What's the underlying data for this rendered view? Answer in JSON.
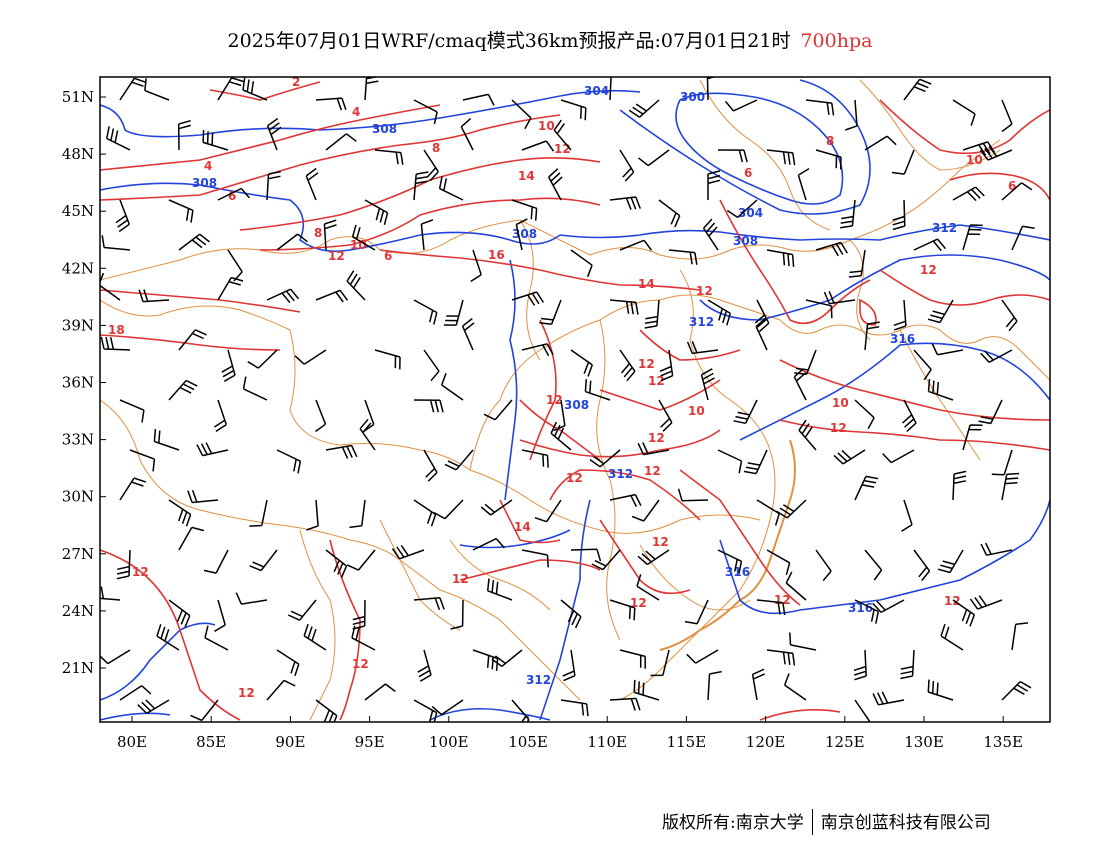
{
  "header": {
    "title": "2025年07月01日WRF/cmaq模式36km预报产品:07月01日21时",
    "level": "700hpa"
  },
  "colors": {
    "geopotential_contours": "#2244dd",
    "temperature_contours": "#e03535",
    "borders": "#e09040",
    "wind_barbs": "#000000"
  },
  "axes": {
    "lon_ticks": [
      "80E",
      "85E",
      "90E",
      "95E",
      "100E",
      "105E",
      "110E",
      "115E",
      "120E",
      "125E",
      "130E",
      "135E"
    ],
    "lat_ticks": [
      "51N",
      "48N",
      "45N",
      "42N",
      "39N",
      "36N",
      "33N",
      "30N",
      "27N",
      "24N",
      "21N"
    ]
  },
  "contour_labels": {
    "blue": [
      "304",
      "300",
      "308",
      "308",
      "308",
      "304",
      "308",
      "312",
      "312",
      "316",
      "308",
      "312",
      "316",
      "316",
      "312"
    ],
    "red": [
      "2",
      "4",
      "4",
      "6",
      "8",
      "10",
      "12",
      "14",
      "6",
      "6",
      "8",
      "10",
      "16",
      "12",
      "14",
      "12",
      "18",
      "10",
      "8",
      "6",
      "12",
      "12",
      "12",
      "12",
      "12",
      "12",
      "12",
      "10",
      "10",
      "12",
      "12",
      "12",
      "14",
      "12",
      "12",
      "12",
      "12",
      "12",
      "12",
      "12",
      "12"
    ]
  },
  "footer": {
    "credit_left": "版权所有:南京大学",
    "credit_right": "南京创蓝科技有限公司"
  }
}
